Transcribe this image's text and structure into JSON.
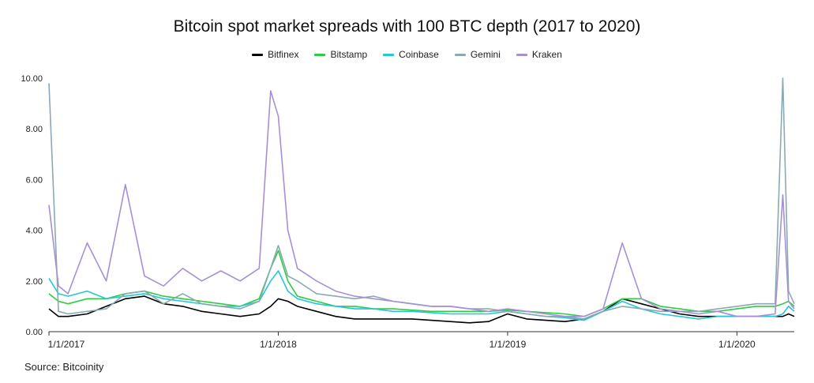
{
  "chart_data": {
    "type": "line",
    "title": "Bitcoin spot market spreads with 100 BTC depth (2017 to 2020)",
    "source": "Source: Bitcoinity",
    "xlabel": "",
    "ylabel": "",
    "ylim": [
      0,
      10
    ],
    "y_ticks": [
      "0.00",
      "2.00",
      "4.00",
      "6.00",
      "8.00",
      "10.00"
    ],
    "y_tick_values": [
      0,
      2,
      4,
      6,
      8,
      10
    ],
    "x_ticks": [
      "1/1/2017",
      "1/1/2018",
      "1/1/2019",
      "1/1/2020"
    ],
    "x_tick_values": [
      0,
      12,
      24,
      36
    ],
    "xlim": [
      0,
      39
    ],
    "x": [
      0,
      0.5,
      1,
      2,
      3,
      4,
      5,
      6,
      7,
      8,
      9,
      10,
      11,
      11.6,
      12,
      12.5,
      13,
      14,
      15,
      16,
      17,
      18,
      19,
      20,
      21,
      22,
      23,
      24,
      25,
      26,
      27,
      28,
      29,
      30,
      31,
      32,
      33,
      34,
      35,
      36,
      37,
      38,
      38.4,
      38.7,
      39
    ],
    "legend_position": "top-center",
    "series": [
      {
        "name": "Bitfinex",
        "color": "#000000",
        "values": [
          0.9,
          0.6,
          0.6,
          0.7,
          1.0,
          1.3,
          1.4,
          1.1,
          1.0,
          0.8,
          0.7,
          0.6,
          0.7,
          1.0,
          1.3,
          1.2,
          1.0,
          0.8,
          0.6,
          0.5,
          0.5,
          0.5,
          0.5,
          0.45,
          0.4,
          0.35,
          0.4,
          0.7,
          0.5,
          0.45,
          0.4,
          0.5,
          0.8,
          1.3,
          1.1,
          0.9,
          0.7,
          0.6,
          0.6,
          0.6,
          0.6,
          0.6,
          0.6,
          0.7,
          0.6
        ]
      },
      {
        "name": "Bitstamp",
        "color": "#2ecc40",
        "values": [
          1.5,
          1.2,
          1.1,
          1.3,
          1.3,
          1.5,
          1.6,
          1.4,
          1.3,
          1.2,
          1.1,
          1.0,
          1.3,
          2.5,
          3.2,
          2.0,
          1.4,
          1.2,
          1.0,
          1.0,
          0.9,
          0.9,
          0.85,
          0.8,
          0.8,
          0.8,
          0.8,
          0.85,
          0.8,
          0.75,
          0.7,
          0.6,
          0.9,
          1.3,
          1.3,
          1.0,
          0.9,
          0.8,
          0.8,
          0.9,
          1.0,
          1.0,
          1.1,
          1.2,
          1.0
        ]
      },
      {
        "name": "Coinbase",
        "color": "#26c6da",
        "values": [
          2.1,
          1.5,
          1.4,
          1.6,
          1.3,
          1.4,
          1.5,
          1.3,
          1.2,
          1.1,
          1.0,
          1.0,
          1.2,
          2.0,
          2.4,
          1.6,
          1.3,
          1.1,
          1.0,
          0.9,
          0.9,
          0.8,
          0.8,
          0.75,
          0.7,
          0.7,
          0.7,
          0.8,
          0.7,
          0.6,
          0.55,
          0.45,
          0.8,
          1.2,
          0.9,
          0.7,
          0.6,
          0.5,
          0.6,
          0.6,
          0.6,
          0.6,
          0.7,
          1.0,
          0.8
        ]
      },
      {
        "name": "Gemini",
        "color": "#8aaab2",
        "values": [
          9.8,
          0.8,
          0.7,
          0.8,
          0.9,
          1.5,
          1.6,
          1.1,
          1.5,
          1.1,
          1.0,
          0.9,
          1.2,
          2.5,
          3.4,
          2.2,
          2.0,
          1.5,
          1.4,
          1.3,
          1.4,
          1.2,
          1.1,
          1.0,
          1.0,
          0.9,
          0.9,
          0.8,
          0.7,
          0.6,
          0.6,
          0.5,
          0.8,
          1.0,
          0.9,
          0.8,
          0.8,
          0.8,
          0.9,
          1.0,
          1.1,
          1.1,
          10.0,
          1.6,
          1.1
        ]
      },
      {
        "name": "Kraken",
        "color": "#a78fd6",
        "values": [
          5.0,
          1.8,
          1.5,
          3.5,
          2.0,
          5.8,
          2.2,
          1.8,
          2.5,
          2.0,
          2.4,
          2.0,
          2.5,
          9.5,
          8.5,
          4.0,
          2.5,
          2.0,
          1.6,
          1.4,
          1.3,
          1.2,
          1.1,
          1.0,
          1.0,
          0.9,
          0.8,
          0.9,
          0.8,
          0.7,
          0.6,
          0.6,
          0.9,
          3.5,
          1.3,
          0.9,
          0.8,
          0.7,
          0.8,
          0.6,
          0.6,
          0.7,
          5.4,
          1.2,
          0.9
        ]
      }
    ]
  }
}
